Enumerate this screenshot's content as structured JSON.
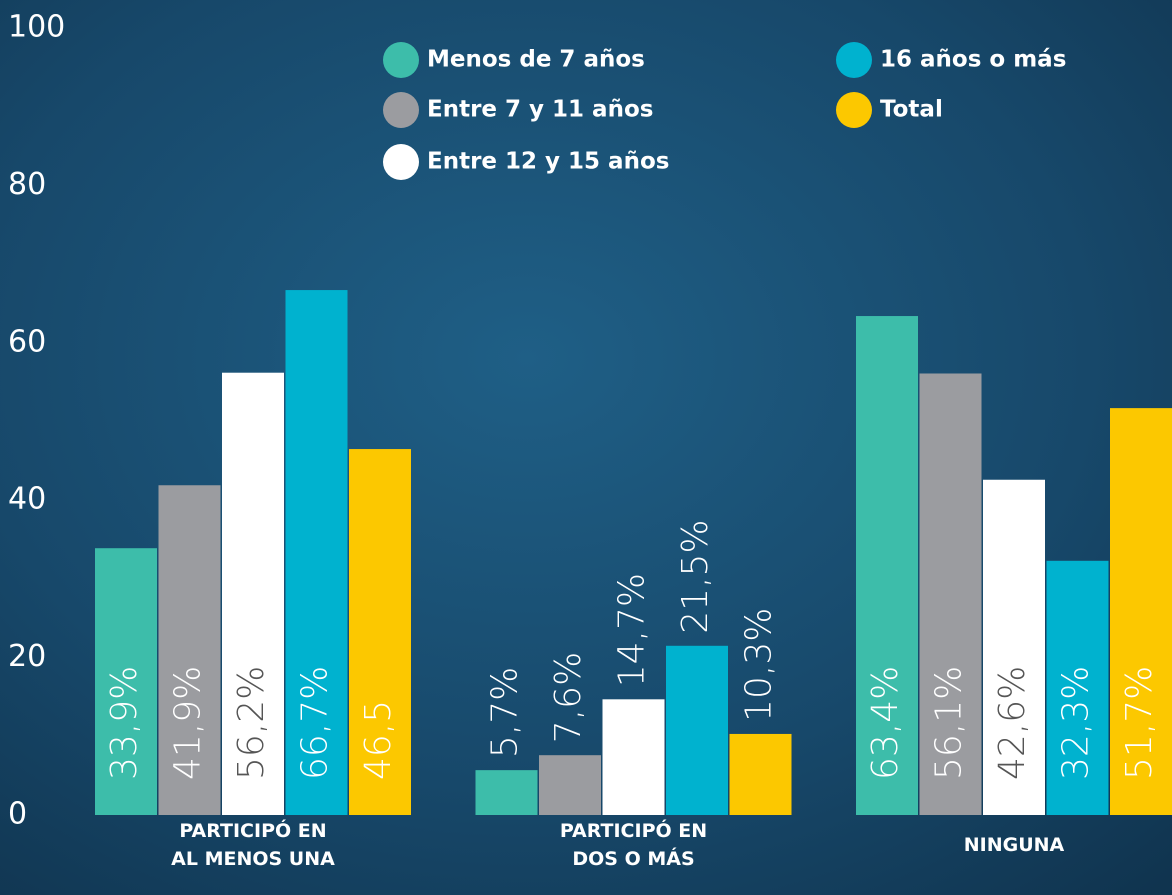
{
  "chart_data": {
    "type": "bar",
    "categories": [
      "PARTICIPÓ EN\nAL MENOS UNA",
      "PARTICIPÓ EN\nDOS O MÁS",
      "NINGUNA"
    ],
    "series": [
      {
        "name": "Menos de 7 años",
        "color": "#3dbdaa",
        "values": [
          33.9,
          5.7,
          63.4
        ],
        "value_labels": [
          "33,9%",
          "5,7%",
          "63,4%"
        ]
      },
      {
        "name": "Entre 7 y 11 años",
        "color": "#9b9ca0",
        "values": [
          41.9,
          7.6,
          56.1
        ],
        "value_labels": [
          "41,9%",
          "7,6%",
          "56,1%"
        ]
      },
      {
        "name": "Entre 12 y 15 años",
        "color": "#ffffff",
        "values": [
          56.2,
          14.7,
          42.6
        ],
        "value_labels": [
          "56,2%",
          "14,7%",
          "42,6%"
        ]
      },
      {
        "name": "16 años o más",
        "color": "#00b2cf",
        "values": [
          66.7,
          21.5,
          32.3
        ],
        "value_labels": [
          "66,7%",
          "21,5%",
          "32,3%"
        ]
      },
      {
        "name": "Total",
        "color": "#fcc800",
        "values": [
          46.5,
          10.3,
          51.7
        ],
        "value_labels": [
          "46,5",
          "10,3%",
          "51,7%"
        ]
      }
    ],
    "ylim": [
      0,
      100
    ],
    "yticks": [
      0,
      20,
      40,
      60,
      80,
      100
    ]
  }
}
